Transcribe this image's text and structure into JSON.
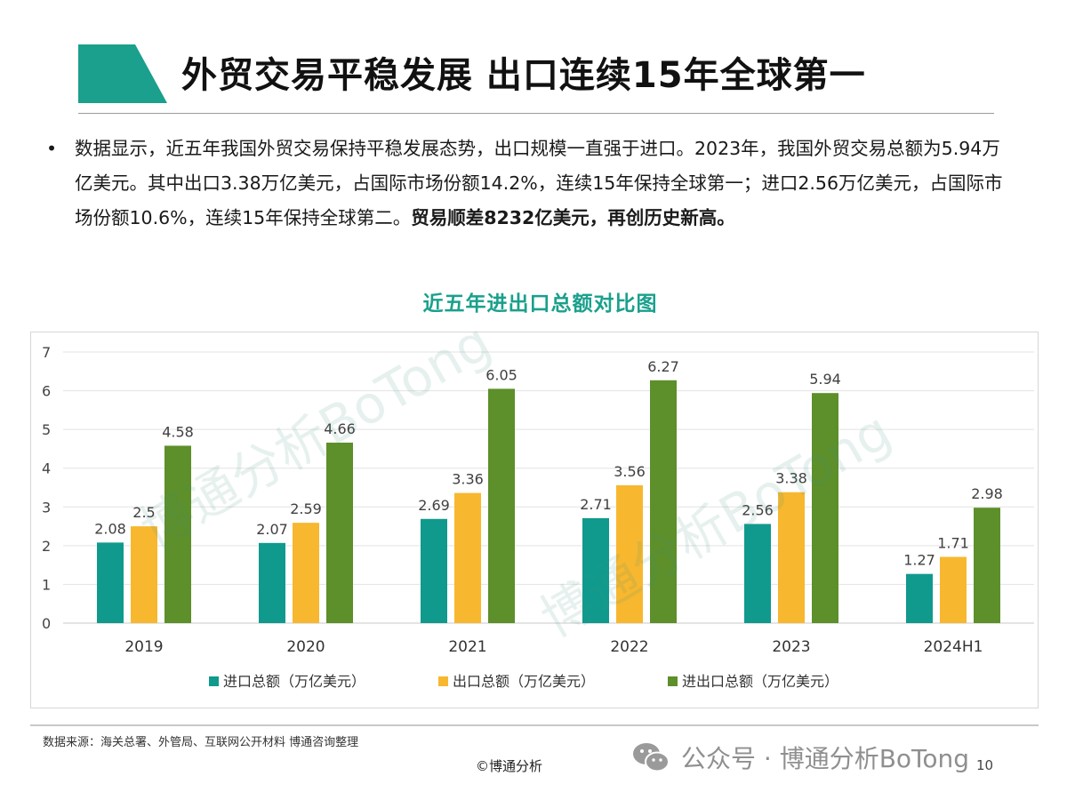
{
  "slide": {
    "title": "外贸交易平稳发展 出口连续15年全球第一",
    "bullet_symbol": "•",
    "bullet_text": "数据显示，近五年我国外贸交易保持平稳发展态势，出口规模一直强于进口。2023年，我国外贸交易总额为5.94万亿美元。其中出口3.38万亿美元，占国际市场份额14.2%，连续15年保持全球第一；进口2.56万亿美元，占国际市场份额10.6%，连续15年保持全球第二。",
    "bullet_bold": "贸易顺差8232亿美元，再创历史新高。",
    "accent_color": "#1aa08c"
  },
  "chart_data": {
    "type": "bar",
    "title": "近五年进出口总额对比图",
    "categories": [
      "2019",
      "2020",
      "2021",
      "2022",
      "2023",
      "2024H1"
    ],
    "series": [
      {
        "name": "进口总额（万亿美元）",
        "color": "#109a8d",
        "values": [
          2.08,
          2.07,
          2.69,
          2.71,
          2.56,
          1.27
        ]
      },
      {
        "name": "出口总额（万亿美元）",
        "color": "#f7b72f",
        "values": [
          2.5,
          2.59,
          3.36,
          3.56,
          3.38,
          1.71
        ]
      },
      {
        "name": "进出口总额（万亿美元）",
        "color": "#5d8f2a",
        "values": [
          4.58,
          4.66,
          6.05,
          6.27,
          5.94,
          2.98
        ]
      }
    ],
    "ylim": [
      0,
      7
    ],
    "yticks": [
      0,
      1,
      2,
      3,
      4,
      5,
      6,
      7
    ],
    "grid": true,
    "data_labels": true,
    "legend_position": "bottom"
  },
  "watermark": "博通分析BoTong",
  "footer": {
    "source": "数据来源：海关总署、外管局、互联网公开材料 博通咨询整理",
    "copyright": "©博通分析",
    "page_number": "10",
    "wechat_label": "公众号 · 博通分析BoTong"
  }
}
